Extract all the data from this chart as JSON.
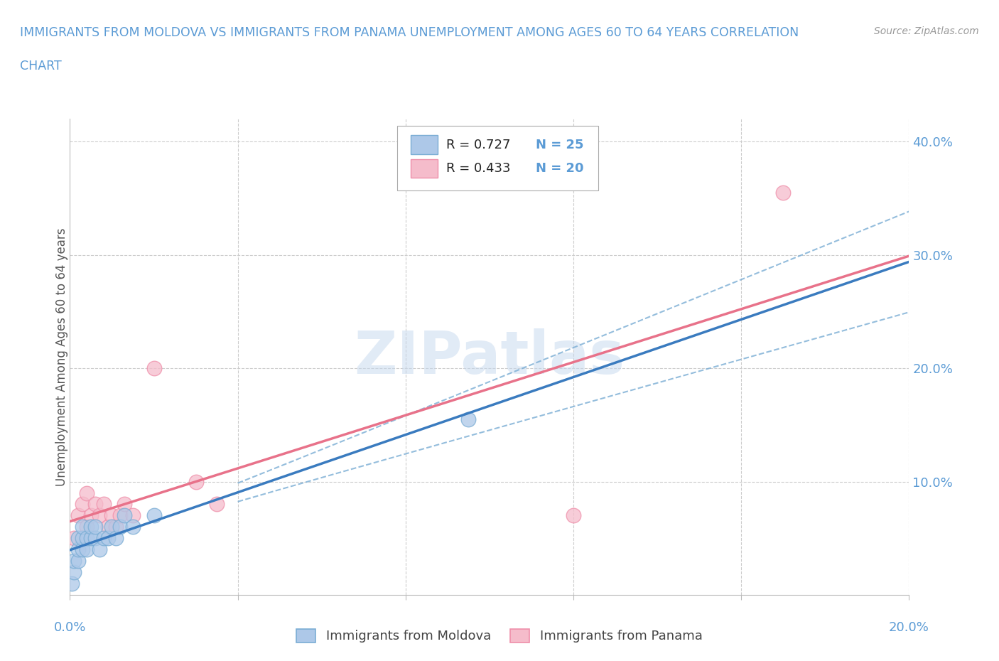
{
  "title_line1": "IMMIGRANTS FROM MOLDOVA VS IMMIGRANTS FROM PANAMA UNEMPLOYMENT AMONG AGES 60 TO 64 YEARS CORRELATION",
  "title_line2": "CHART",
  "source": "Source: ZipAtlas.com",
  "ylabel": "Unemployment Among Ages 60 to 64 years",
  "xlim": [
    0.0,
    0.2
  ],
  "ylim": [
    0.0,
    0.42
  ],
  "xticks": [
    0.0,
    0.04,
    0.08,
    0.12,
    0.16,
    0.2
  ],
  "yticks": [
    0.1,
    0.2,
    0.3,
    0.4
  ],
  "moldova_color": "#adc8e8",
  "moldova_edge": "#7aadd4",
  "panama_color": "#f5bccb",
  "panama_edge": "#ef8faa",
  "regression_blue": "#3a7bbf",
  "regression_pink": "#e8728a",
  "ci_blue": "#7aadd4",
  "R_moldova": 0.727,
  "N_moldova": 25,
  "R_panama": 0.433,
  "N_panama": 20,
  "moldova_x": [
    0.0005,
    0.001,
    0.001,
    0.002,
    0.002,
    0.002,
    0.003,
    0.003,
    0.003,
    0.004,
    0.004,
    0.005,
    0.005,
    0.006,
    0.006,
    0.007,
    0.008,
    0.009,
    0.01,
    0.011,
    0.012,
    0.013,
    0.015,
    0.02,
    0.095
  ],
  "moldova_y": [
    0.01,
    0.02,
    0.03,
    0.03,
    0.04,
    0.05,
    0.04,
    0.05,
    0.06,
    0.04,
    0.05,
    0.05,
    0.06,
    0.05,
    0.06,
    0.04,
    0.05,
    0.05,
    0.06,
    0.05,
    0.06,
    0.07,
    0.06,
    0.07,
    0.155
  ],
  "panama_x": [
    0.001,
    0.002,
    0.003,
    0.004,
    0.004,
    0.005,
    0.006,
    0.007,
    0.008,
    0.009,
    0.01,
    0.011,
    0.012,
    0.013,
    0.015,
    0.02,
    0.03,
    0.035,
    0.12,
    0.17
  ],
  "panama_y": [
    0.05,
    0.07,
    0.08,
    0.06,
    0.09,
    0.07,
    0.08,
    0.07,
    0.08,
    0.06,
    0.07,
    0.06,
    0.07,
    0.08,
    0.07,
    0.2,
    0.1,
    0.08,
    0.07,
    0.355
  ],
  "watermark_text": "ZIPatlas",
  "background_color": "#ffffff",
  "grid_color": "#cccccc",
  "title_color": "#5b9bd5",
  "label_color": "#555555",
  "tick_color": "#5b9bd5"
}
